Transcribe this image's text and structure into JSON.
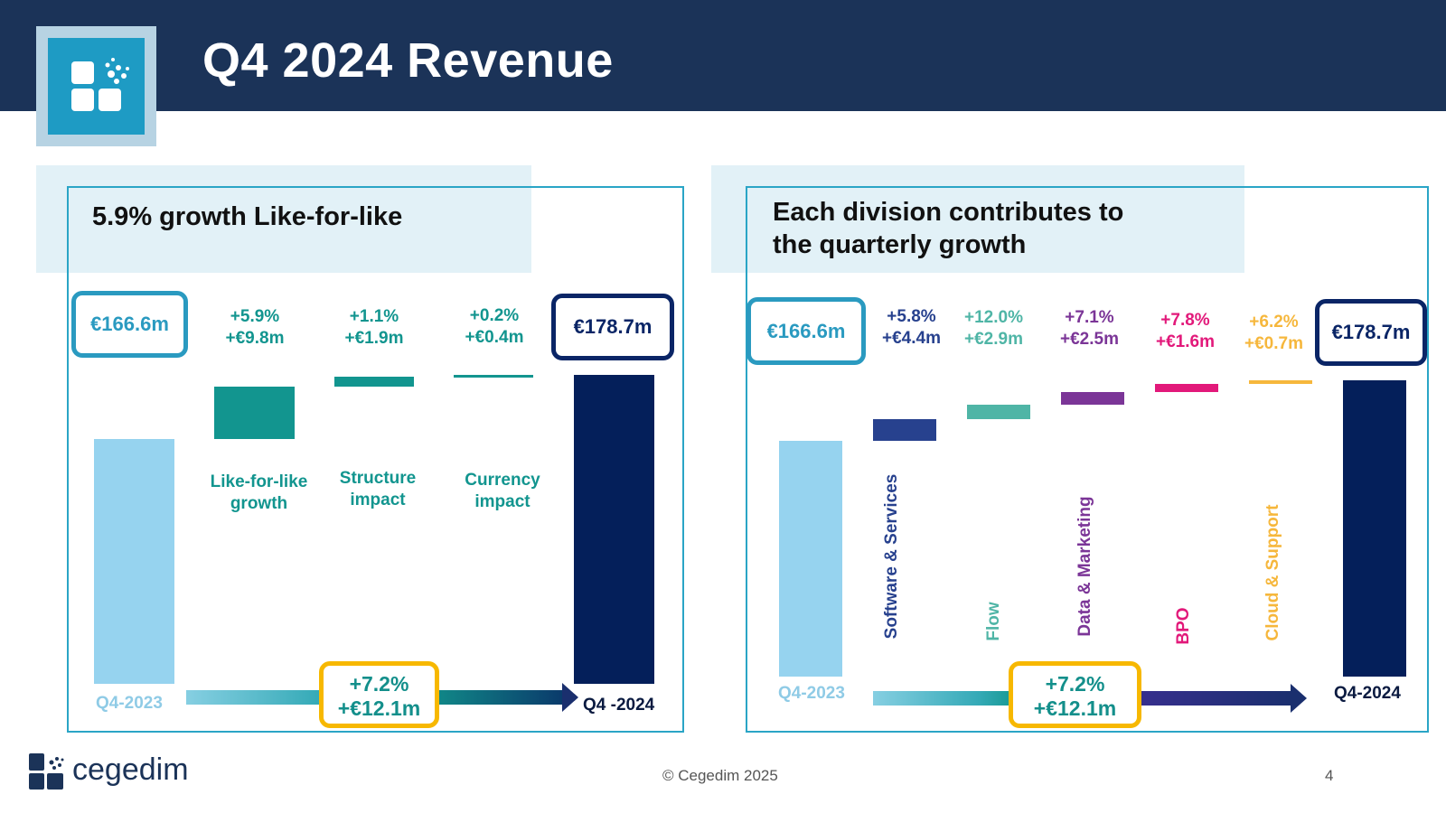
{
  "slide": {
    "title": "Q4 2024 Revenue",
    "copyright": "© Cegedim 2025",
    "page_number": "4",
    "brand": "cegedim"
  },
  "colors": {
    "header": "#1b3358",
    "frame": "#2aa5c6",
    "start_bar": "#96d3ef",
    "end_bar": "#041f5a",
    "teal": "#12958f",
    "navy": "#27418e",
    "flow": "#4fb5a6",
    "data_marketing": "#7b3597",
    "bpo": "#e2197a",
    "cloud_support": "#f6b73c",
    "highlight": "#f7b800"
  },
  "chart_data": [
    {
      "type": "bar",
      "title": "5.9% growth Like-for-like",
      "start": {
        "label": "Q4-2023",
        "value": 166.6,
        "display": "€166.6m"
      },
      "end": {
        "label": "Q4 -2024",
        "value": 178.7,
        "display": "€178.7m"
      },
      "steps": [
        {
          "name": "Like-for-like growth",
          "value": 9.8,
          "pct": "+5.9%",
          "amount": "+€9.8m",
          "color": "#12958f"
        },
        {
          "name": "Structure impact",
          "value": 1.9,
          "pct": "+1.1%",
          "amount": "+€1.9m",
          "color": "#12958f"
        },
        {
          "name": "Currency impact",
          "value": 0.4,
          "pct": "+0.2%",
          "amount": "+€0.4m",
          "color": "#12958f"
        }
      ],
      "total_growth": {
        "pct": "+7.2%",
        "amount": "+€12.1m"
      }
    },
    {
      "type": "bar",
      "title": "Each division contributes to the quarterly growth",
      "start": {
        "label": "Q4-2023",
        "value": 166.6,
        "display": "€166.6m"
      },
      "end": {
        "label": "Q4-2024",
        "value": 178.7,
        "display": "€178.7m"
      },
      "steps": [
        {
          "name": "Software & Services",
          "value": 4.4,
          "pct": "+5.8%",
          "amount": "+€4.4m",
          "color": "#27418e"
        },
        {
          "name": "Flow",
          "value": 2.9,
          "pct": "+12.0%",
          "amount": "+€2.9m",
          "color": "#4fb5a6"
        },
        {
          "name": "Data & Marketing",
          "value": 2.5,
          "pct": "+7.1%",
          "amount": "+€2.5m",
          "color": "#7b3597"
        },
        {
          "name": "BPO",
          "value": 1.6,
          "pct": "+7.8%",
          "amount": "+€1.6m",
          "color": "#e2197a"
        },
        {
          "name": "Cloud & Support",
          "value": 0.7,
          "pct": "+6.2%",
          "amount": "+€0.7m",
          "color": "#f6b73c"
        }
      ],
      "total_growth": {
        "pct": "+7.2%",
        "amount": "+€12.1m"
      }
    }
  ]
}
